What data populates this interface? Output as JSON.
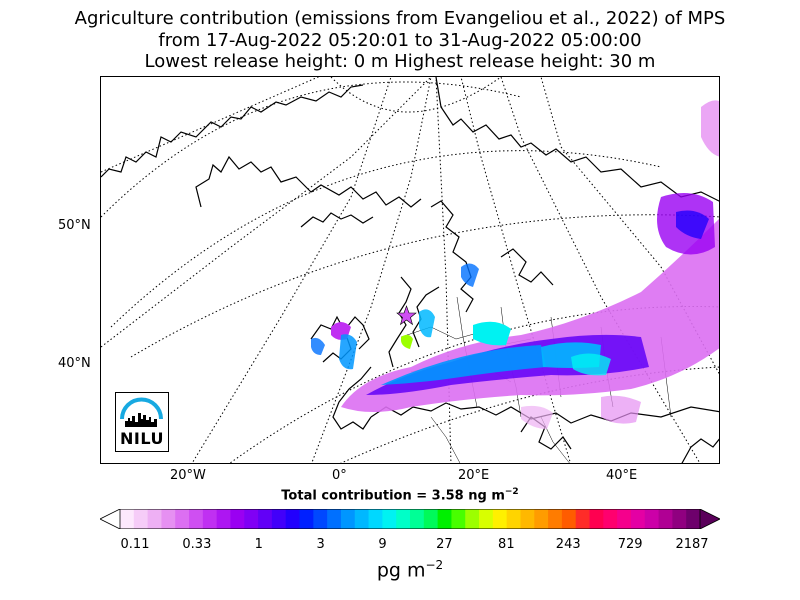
{
  "title": {
    "line1": "Agriculture contribution (emissions from Evangeliou et al., 2022) of MPS",
    "line2": "from 17-Aug-2022 05:20:01 to 31-Aug-2022 05:00:00",
    "line3": "Lowest release height: 0 m      Highest release height: 30 m"
  },
  "map": {
    "lat_labels": [
      "50°N",
      "40°N"
    ],
    "lon_labels": [
      "20°W",
      "0°",
      "20°E",
      "40°E"
    ],
    "logo_text": "NILU",
    "release_site_marker": "star-icon"
  },
  "total_contribution": {
    "prefix": "Total contribution = 3.58 ng m",
    "exponent": "−2"
  },
  "colorbar": {
    "tick_labels": [
      "0.11",
      "0.33",
      "1",
      "3",
      "9",
      "27",
      "81",
      "243",
      "729",
      "2187"
    ],
    "units_base": "pg m",
    "units_exponent": "−2",
    "colors": [
      "#fde8fd",
      "#f6ccf8",
      "#eeb0f4",
      "#e690f2",
      "#dc6ff2",
      "#cf4ff2",
      "#c030f2",
      "#ad16f2",
      "#9a00f2",
      "#8000f5",
      "#6200f7",
      "#4200fa",
      "#2200fd",
      "#0020ff",
      "#0048ff",
      "#0070ff",
      "#0096ff",
      "#00b8ff",
      "#00d8ff",
      "#00f2f2",
      "#00ffc8",
      "#00ff96",
      "#00fa5a",
      "#00f000",
      "#48ff00",
      "#9cff00",
      "#d8ff00",
      "#fff000",
      "#ffd400",
      "#ffb800",
      "#ff9c00",
      "#ff7c00",
      "#ff5c00",
      "#ff2c28",
      "#ff0050",
      "#ff006e",
      "#f5008c",
      "#e400a4",
      "#cc00a8",
      "#b00094",
      "#900080",
      "#6e006c"
    ]
  }
}
